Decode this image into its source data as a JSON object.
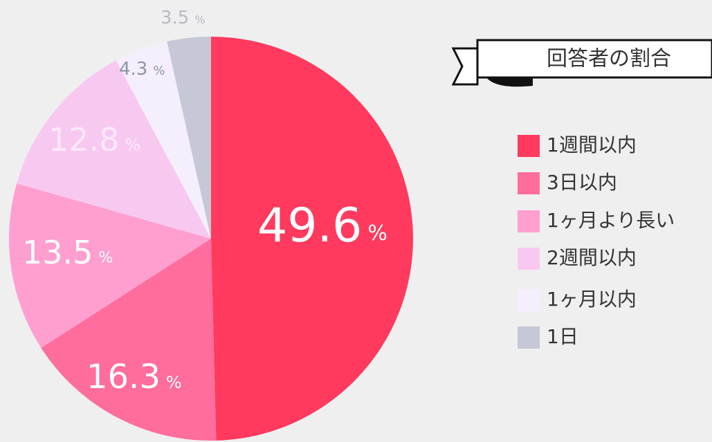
{
  "chart_data": {
    "type": "pie",
    "legend_title": "回答者の割合",
    "categories": [
      "1週間以内",
      "3日以内",
      "1ヶ月より長い",
      "2週間以内",
      "1ヶ月以内",
      "1日"
    ],
    "values": [
      49.6,
      16.3,
      13.5,
      12.8,
      4.3,
      3.5
    ],
    "unit": "%",
    "colors": [
      "#ff3a5e",
      "#ff6d9c",
      "#ff9fd0",
      "#f8c9f0",
      "#f5eefd",
      "#c6c7d7"
    ],
    "legend": "right"
  }
}
